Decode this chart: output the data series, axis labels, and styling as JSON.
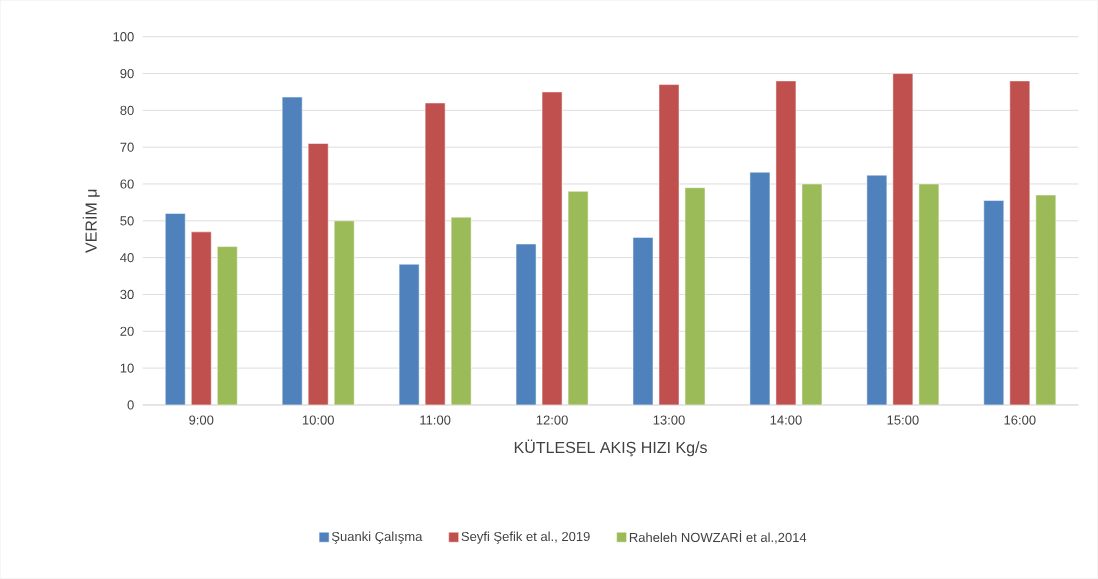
{
  "chart_data": {
    "type": "bar",
    "xlabel": "KÜTLESEL AKIŞ HIZI Kg/s",
    "ylabel": "VERİM μ",
    "categories": [
      "9:00",
      "10:00",
      "11:00",
      "12:00",
      "13:00",
      "14:00",
      "15:00",
      "16:00"
    ],
    "series": [
      {
        "name": "Şuanki Çalışma",
        "color": "#4f81bd",
        "values": [
          52,
          83.6,
          38.2,
          43.7,
          45.5,
          63.2,
          62.4,
          55.5
        ]
      },
      {
        "name": "Seyfi Şefik et al., 2019",
        "color": "#c0504d",
        "values": [
          47,
          71,
          82,
          85,
          87,
          88,
          90,
          88
        ]
      },
      {
        "name": "Raheleh NOWZARİ et al.,2014",
        "color": "#9bbb59",
        "values": [
          43,
          50,
          51,
          58,
          59,
          60,
          60,
          57
        ]
      }
    ],
    "ylim": [
      0,
      100
    ],
    "yticks": [
      0,
      10,
      20,
      30,
      40,
      50,
      60,
      70,
      80,
      90,
      100
    ],
    "grid": "y",
    "legend": "bottom"
  }
}
